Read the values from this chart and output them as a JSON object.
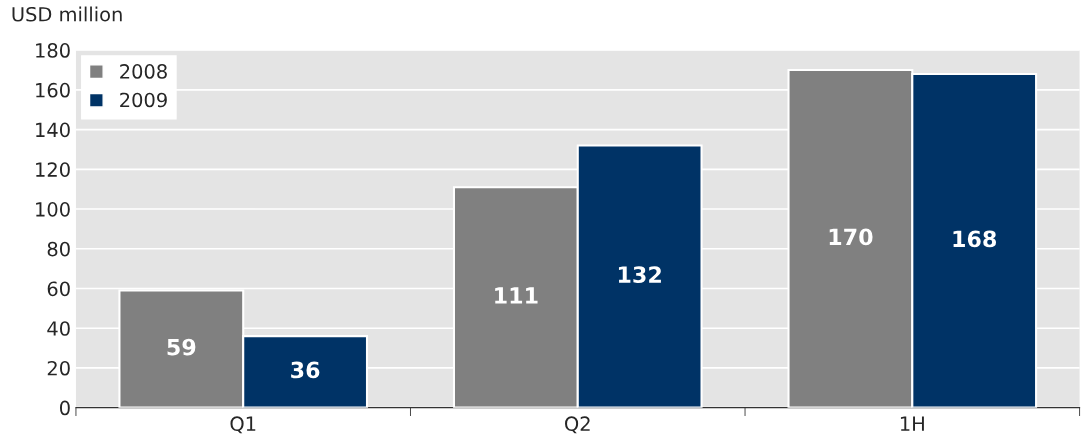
{
  "chart_data": {
    "type": "bar",
    "ylabel": "USD million",
    "categories": [
      "Q1",
      "Q2",
      "1H"
    ],
    "series": [
      {
        "name": "2008",
        "color": "#808080",
        "values": [
          59,
          111,
          170
        ]
      },
      {
        "name": "2009",
        "color": "#003366",
        "values": [
          36,
          132,
          168
        ]
      }
    ],
    "ylim": [
      0,
      180
    ],
    "yticks": [
      0,
      20,
      40,
      60,
      80,
      100,
      120,
      140,
      160,
      180
    ],
    "grid": "y",
    "legend": "top left",
    "data_labels": true
  }
}
